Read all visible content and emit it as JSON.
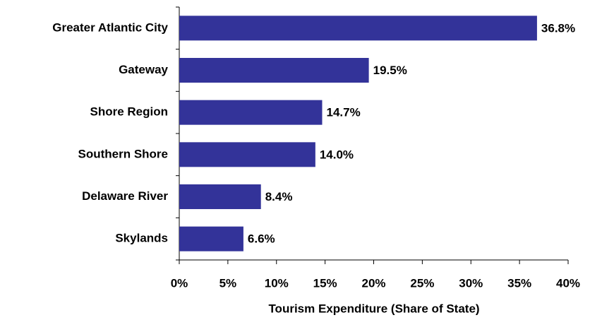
{
  "chart_data": {
    "type": "bar",
    "orientation": "horizontal",
    "x_label": "Tourism Expenditure (Share of State)",
    "categories": [
      "Greater Atlantic City",
      "Gateway",
      "Shore Region",
      "Southern Shore",
      "Delaware River",
      "Skylands"
    ],
    "values": [
      36.8,
      19.5,
      14.7,
      14.0,
      8.4,
      6.6
    ],
    "value_labels": [
      "36.8%",
      "19.5%",
      "14.7%",
      "14.0%",
      "8.4%",
      "6.6%"
    ],
    "color": "#333399",
    "xlim": [
      0,
      40
    ],
    "xticks": [
      {
        "value": 0,
        "label": "0%"
      },
      {
        "value": 5,
        "label": "5%"
      },
      {
        "value": 10,
        "label": "10%"
      },
      {
        "value": 15,
        "label": "15%"
      },
      {
        "value": 20,
        "label": "20%"
      },
      {
        "value": 25,
        "label": "25%"
      },
      {
        "value": 30,
        "label": "30%"
      },
      {
        "value": 35,
        "label": "35%"
      },
      {
        "value": 40,
        "label": "40%"
      }
    ],
    "grid": false
  }
}
